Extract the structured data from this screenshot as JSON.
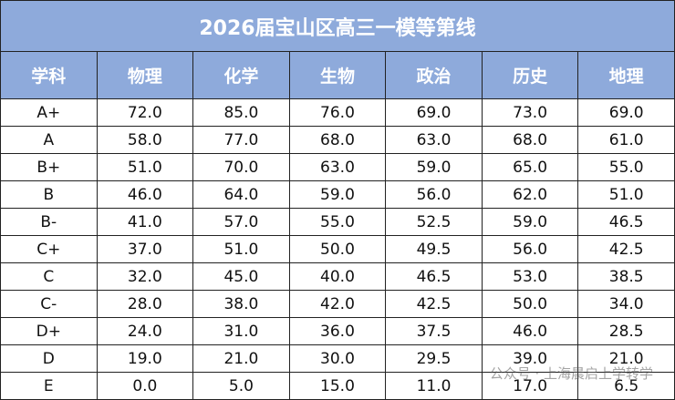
{
  "header": {
    "title": "2026届宝山区高三一模等第线"
  },
  "table": {
    "columns": [
      "学科",
      "物理",
      "化学",
      "生物",
      "政治",
      "历史",
      "地理"
    ],
    "rows": [
      [
        "A+",
        "72.0",
        "85.0",
        "76.0",
        "69.0",
        "73.0",
        "69.0"
      ],
      [
        "A",
        "58.0",
        "77.0",
        "68.0",
        "63.0",
        "68.0",
        "61.0"
      ],
      [
        "B+",
        "51.0",
        "70.0",
        "63.0",
        "59.0",
        "65.0",
        "55.0"
      ],
      [
        "B",
        "46.0",
        "64.0",
        "59.0",
        "56.0",
        "62.0",
        "51.0"
      ],
      [
        "B-",
        "41.0",
        "57.0",
        "55.0",
        "52.5",
        "59.0",
        "46.5"
      ],
      [
        "C+",
        "37.0",
        "51.0",
        "50.0",
        "49.5",
        "56.0",
        "42.5"
      ],
      [
        "C",
        "32.0",
        "45.0",
        "40.0",
        "46.5",
        "53.0",
        "38.5"
      ],
      [
        "C-",
        "28.0",
        "38.0",
        "42.0",
        "42.5",
        "50.0",
        "34.0"
      ],
      [
        "D+",
        "24.0",
        "31.0",
        "36.0",
        "37.5",
        "46.0",
        "28.5"
      ],
      [
        "D",
        "19.0",
        "21.0",
        "30.0",
        "29.5",
        "39.0",
        "21.0"
      ],
      [
        "E",
        "0.0",
        "5.0",
        "15.0",
        "11.0",
        "17.0",
        "6.5"
      ]
    ]
  },
  "watermark": "公众号 · 上海晨启上学转学"
}
